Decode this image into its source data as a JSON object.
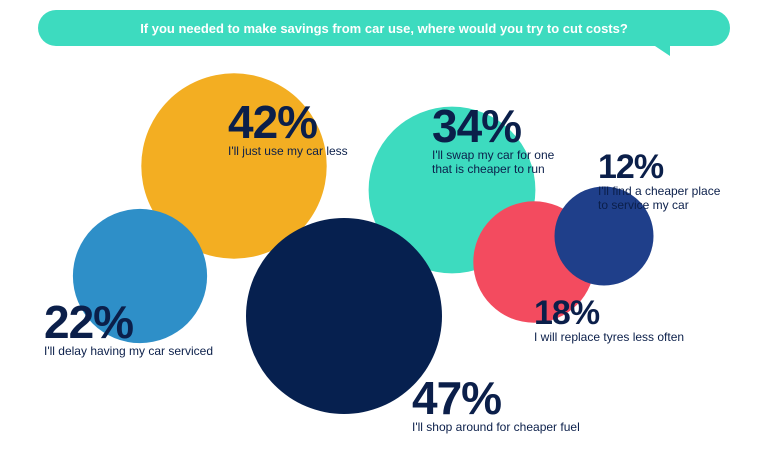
{
  "banner": {
    "question": "If you needed to make savings from car use, where would you try to cut costs?",
    "color": "#3ddbbf"
  },
  "chart_data": {
    "type": "bubble",
    "title": "If you needed to make savings from car use, where would you try to cut costs?",
    "unit": "%",
    "values": [
      {
        "label": "I'll just use my car less",
        "value": 42,
        "value_label": "42%",
        "color": "#f3ae22"
      },
      {
        "label": "I'll swap my car for one\nthat is cheaper to run",
        "value": 34,
        "value_label": "34%",
        "color": "#3ddbbf"
      },
      {
        "label": "I'll find a cheaper place\nto service my car",
        "value": 12,
        "value_label": "12%",
        "color": "#1f3f8a"
      },
      {
        "label": "I'll delay having my car serviced",
        "value": 22,
        "value_label": "22%",
        "color": "#2e8fc8"
      },
      {
        "label": "I'll shop around for cheaper fuel",
        "value": 47,
        "value_label": "47%",
        "color": "#06204f"
      },
      {
        "label": "I will replace tyres less often",
        "value": 18,
        "value_label": "18%",
        "color": "#f34b5f"
      }
    ]
  }
}
